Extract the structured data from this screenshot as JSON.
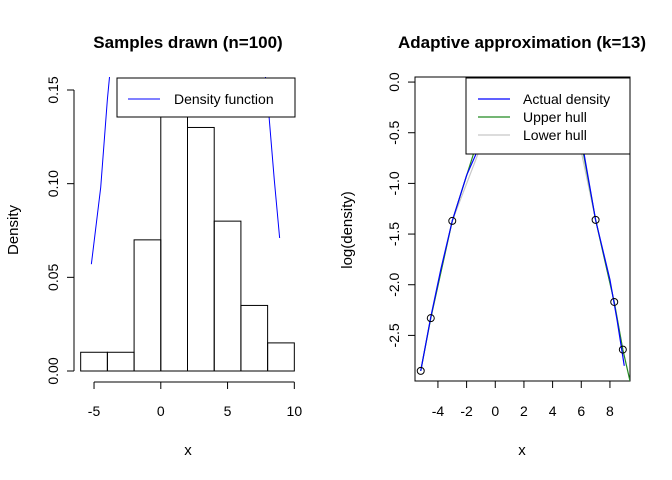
{
  "chart_data": [
    {
      "type": "bar",
      "title": "Samples drawn (n=100)",
      "xlabel": "x",
      "ylabel": "Density",
      "xlim": [
        -6.5,
        10.5
      ],
      "ylim": [
        0,
        0.15
      ],
      "x_ticks": [
        -5,
        0,
        5,
        10
      ],
      "y_ticks": [
        0.0,
        0.05,
        0.1,
        0.15
      ],
      "y_tick_labels": [
        "0.00",
        "0.05",
        "0.10",
        "0.15"
      ],
      "bins": [
        {
          "x0": -6,
          "x1": -4,
          "density": 0.01
        },
        {
          "x0": -4,
          "x1": -2,
          "density": 0.01
        },
        {
          "x0": -2,
          "x1": 0,
          "density": 0.07
        },
        {
          "x0": 0,
          "x1": 2,
          "density": 0.15
        },
        {
          "x0": 2,
          "x1": 4,
          "density": 0.13
        },
        {
          "x0": 4,
          "x1": 6,
          "density": 0.08
        },
        {
          "x0": 6,
          "x1": 8,
          "density": 0.035
        },
        {
          "x0": 8,
          "x1": 10,
          "density": 0.015
        }
      ],
      "series": [
        {
          "name": "Density function",
          "color": "#0000ff",
          "x": [
            -5.2,
            -4.5,
            -4.0,
            -3.8,
            7.8,
            8.0,
            8.5,
            8.9
          ],
          "y": [
            0.057,
            0.098,
            0.145,
            0.16,
            0.16,
            0.145,
            0.102,
            0.071
          ]
        }
      ],
      "legend": {
        "position": "top-right",
        "entries": [
          {
            "label": "Density function",
            "color": "#0000ff"
          }
        ]
      }
    },
    {
      "type": "line",
      "title": "Adaptive approximation (k=13)",
      "xlabel": "x",
      "ylabel": "log(density)",
      "xlim": [
        -5.6,
        9.4
      ],
      "ylim": [
        -2.95,
        0.05
      ],
      "x_ticks": [
        -4,
        -2,
        0,
        2,
        4,
        6,
        8
      ],
      "y_ticks": [
        0.0,
        -0.5,
        -1.0,
        -1.5,
        -2.0,
        -2.5
      ],
      "y_tick_labels": [
        "0.0",
        "-0.5",
        "-1.0",
        "-1.5",
        "-2.0",
        "-2.5"
      ],
      "series": [
        {
          "name": "Actual density",
          "color": "#0000ff",
          "x": [
            -5.2,
            -4.5,
            -3.8,
            -3.0,
            -2.0,
            -1.0,
            0.0,
            0.5,
            5.5,
            6.0,
            7.0,
            8.0,
            8.5,
            9.0
          ],
          "y": [
            -2.85,
            -2.32,
            -1.85,
            -1.37,
            -0.92,
            -0.6,
            -0.35,
            -0.2,
            -0.2,
            -0.55,
            -1.36,
            -1.95,
            -2.35,
            -2.8
          ]
        },
        {
          "name": "Upper hull",
          "color": "#228b22",
          "x": [
            -5.2,
            -4.5,
            -3.0,
            -1.5,
            0.0,
            0.5,
            5.5,
            7.0,
            8.3,
            8.9,
            9.4
          ],
          "y": [
            -2.85,
            -2.33,
            -1.37,
            -0.7,
            -0.28,
            -0.2,
            -0.2,
            -1.36,
            -2.17,
            -2.64,
            -2.95
          ]
        },
        {
          "name": "Lower hull",
          "color": "#c8c8c8",
          "x": [
            -5.2,
            -4.5,
            -3.0,
            -0.5,
            5.5,
            7.0,
            8.3,
            8.9
          ],
          "y": [
            -2.85,
            -2.33,
            -1.37,
            -0.45,
            -0.35,
            -1.36,
            -2.17,
            -2.64
          ]
        }
      ],
      "points": {
        "x": [
          -5.2,
          -4.5,
          -3.0,
          7.0,
          8.3,
          8.9
        ],
        "y": [
          -2.85,
          -2.33,
          -1.37,
          -1.36,
          -2.17,
          -2.64
        ]
      },
      "legend": {
        "position": "top-right",
        "entries": [
          {
            "label": "Actual density",
            "color": "#0000ff"
          },
          {
            "label": "Upper hull",
            "color": "#228b22"
          },
          {
            "label": "Lower hull",
            "color": "#c8c8c8"
          }
        ]
      }
    }
  ]
}
